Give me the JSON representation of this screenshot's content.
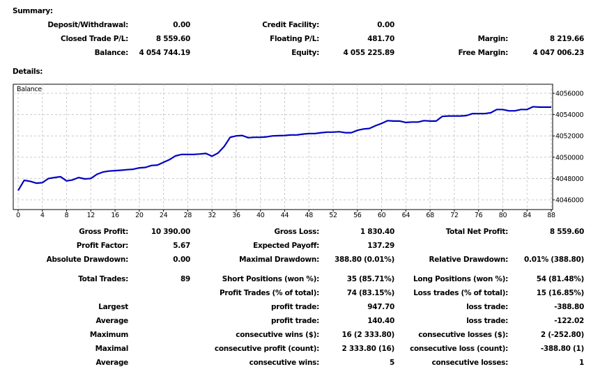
{
  "summary": {
    "title": "Summary:",
    "rows": [
      [
        "Deposit/Withdrawal:",
        "0.00",
        "Credit Facility:",
        "0.00",
        "",
        ""
      ],
      [
        "Closed Trade P/L:",
        "8 559.60",
        "Floating P/L:",
        "481.70",
        "Margin:",
        "8 219.66"
      ],
      [
        "Balance:",
        "4 054 744.19",
        "Equity:",
        "4 055 225.89",
        "Free Margin:",
        "4 047 006.23"
      ]
    ]
  },
  "details": {
    "title": "Details:",
    "rows": [
      [
        "Gross Profit:",
        "10 390.00",
        "Gross Loss:",
        "1 830.40",
        "Total Net Profit:",
        "8 559.60"
      ],
      [
        "Profit Factor:",
        "5.67",
        "Expected Payoff:",
        "137.29",
        "",
        ""
      ],
      [
        "Absolute Drawdown:",
        "0.00",
        "Maximal Drawdown:",
        "388.80 (0.01%)",
        "Relative Drawdown:",
        "0.01% (388.80)"
      ],
      [
        "Total Trades:",
        "89",
        "Short Positions (won %):",
        "35 (85.71%)",
        "Long Positions (won %):",
        "54 (81.48%)"
      ],
      [
        "",
        "",
        "Profit Trades (% of total):",
        "74 (83.15%)",
        "Loss trades (% of total):",
        "15 (16.85%)"
      ],
      [
        "Largest",
        "",
        "profit trade:",
        "947.70",
        "loss trade:",
        "-388.80"
      ],
      [
        "Average",
        "",
        "profit trade:",
        "140.40",
        "loss trade:",
        "-122.02"
      ],
      [
        "Maximum",
        "",
        "consecutive wins ($):",
        "16 (2 333.80)",
        "consecutive losses ($):",
        "2 (-252.80)"
      ],
      [
        "Maximal",
        "",
        "consecutive profit (count):",
        "2 333.80 (16)",
        "consecutive loss (count):",
        "-388.80 (1)"
      ],
      [
        "Average",
        "",
        "consecutive wins:",
        "5",
        "consecutive losses:",
        "1"
      ]
    ]
  },
  "chart_data": {
    "type": "line",
    "title": "Balance",
    "xlim": [
      0,
      88
    ],
    "ylim": [
      4045200,
      4056800
    ],
    "x_ticks": [
      0,
      4,
      8,
      12,
      16,
      20,
      24,
      28,
      32,
      36,
      40,
      44,
      48,
      52,
      56,
      60,
      64,
      68,
      72,
      76,
      80,
      84,
      88
    ],
    "y_ticks": [
      4046000,
      4048000,
      4050000,
      4052000,
      4054000,
      4056000
    ],
    "grid": true,
    "line_color": "#0000c0",
    "values": [
      4046870,
      4047830,
      4047740,
      4047560,
      4047610,
      4048000,
      4048090,
      4048170,
      4047780,
      4047870,
      4048090,
      4047960,
      4048000,
      4048390,
      4048610,
      4048700,
      4048740,
      4048780,
      4048830,
      4048870,
      4049000,
      4049040,
      4049220,
      4049260,
      4049520,
      4049780,
      4050130,
      4050260,
      4050260,
      4050260,
      4050300,
      4050350,
      4050090,
      4050390,
      4051000,
      4051870,
      4052000,
      4052040,
      4051830,
      4051870,
      4051870,
      4051910,
      4052000,
      4052020,
      4052040,
      4052090,
      4052090,
      4052170,
      4052220,
      4052220,
      4052300,
      4052350,
      4052350,
      4052390,
      4052300,
      4052300,
      4052520,
      4052650,
      4052700,
      4052960,
      4053170,
      4053430,
      4053390,
      4053390,
      4053260,
      4053300,
      4053300,
      4053430,
      4053390,
      4053390,
      4053830,
      4053870,
      4053870,
      4053870,
      4053910,
      4054090,
      4054090,
      4054090,
      4054170,
      4054480,
      4054480,
      4054350,
      4054350,
      4054480,
      4054480,
      4054740,
      4054700,
      4054700,
      4054700
    ]
  }
}
